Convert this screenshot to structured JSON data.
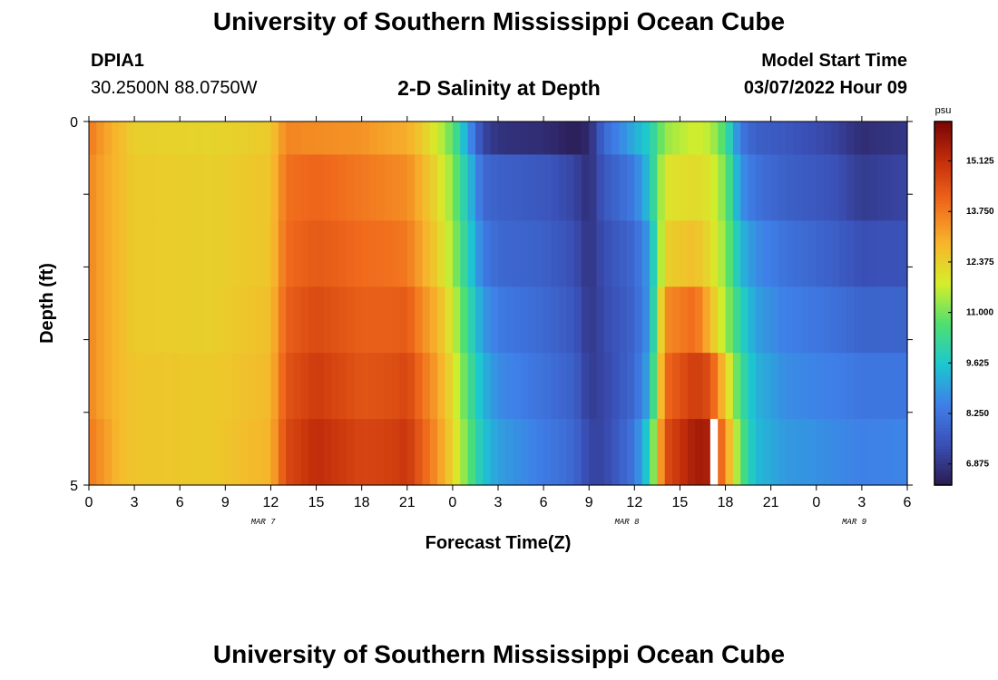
{
  "header": {
    "title": "University of Southern Mississippi Ocean Cube",
    "station": "DPIA1",
    "coords": "30.2500N  88.0750W",
    "plot_title": "2-D Salinity at Depth",
    "start_label": "Model Start Time",
    "start_time": "03/07/2022 Hour 09",
    "footer_title": "University of Southern Mississippi Ocean Cube"
  },
  "chart_data": {
    "type": "heatmap",
    "title": "2-D Salinity at Depth",
    "xlabel": "Forecast Time(Z)",
    "ylabel": "Depth (ft)",
    "x_tick_labels": [
      "0",
      "3",
      "6",
      "9",
      "12",
      "15",
      "18",
      "21",
      "0",
      "3",
      "6",
      "9",
      "12",
      "15",
      "18",
      "21",
      "0",
      "3",
      "6"
    ],
    "date_labels": [
      {
        "label": "MAR 7",
        "at_hour": 11.5
      },
      {
        "label": "MAR 8",
        "at_hour": 35.5
      },
      {
        "label": "MAR 9",
        "at_hour": 50.5
      }
    ],
    "xlim": [
      0,
      54
    ],
    "ylim": [
      0,
      5
    ],
    "y_tick_labels": [
      "0",
      "5"
    ],
    "depth_levels": [
      0,
      1,
      2,
      3,
      4,
      5
    ],
    "colorbar": {
      "unit": "psu",
      "range": [
        6.3,
        16.2
      ],
      "ticks": [
        15.125,
        13.75,
        12.375,
        11.0,
        9.625,
        8.25,
        6.875
      ],
      "tick_labels": [
        "15.125",
        "13.750",
        "12.375",
        "11.000",
        "9.625",
        "8.250",
        "6.875"
      ],
      "colors": [
        "#2b1a4f",
        "#3a4fb5",
        "#3f7fe8",
        "#1cc7d0",
        "#4ee070",
        "#d6ee2a",
        "#f7b52c",
        "#f06a1c",
        "#c6300b",
        "#7a0505"
      ]
    },
    "keyframes": [
      {
        "hour": 0,
        "values": [
          13.8,
          13.6,
          13.6,
          13.6,
          13.6,
          13.8
        ]
      },
      {
        "hour": 1,
        "values": [
          13.2,
          13.1,
          13.1,
          13.1,
          13.1,
          13.3
        ]
      },
      {
        "hour": 2,
        "values": [
          12.8,
          12.8,
          12.8,
          12.8,
          12.8,
          12.8
        ]
      },
      {
        "hour": 3,
        "values": [
          12.4,
          12.5,
          12.5,
          12.5,
          12.6,
          12.6
        ]
      },
      {
        "hour": 8,
        "values": [
          12.3,
          12.4,
          12.4,
          12.4,
          12.5,
          12.5
        ]
      },
      {
        "hour": 12,
        "values": [
          12.5,
          12.6,
          12.6,
          12.7,
          12.8,
          12.9
        ]
      },
      {
        "hour": 13,
        "values": [
          13.6,
          13.9,
          14.0,
          14.2,
          14.4,
          14.6
        ]
      },
      {
        "hour": 15,
        "values": [
          13.5,
          14.1,
          14.3,
          14.6,
          14.9,
          15.2
        ]
      },
      {
        "hour": 18,
        "values": [
          13.4,
          13.8,
          14.0,
          14.2,
          14.4,
          14.7
        ]
      },
      {
        "hour": 20,
        "values": [
          13.1,
          13.6,
          13.9,
          14.2,
          14.5,
          14.8
        ]
      },
      {
        "hour": 21,
        "values": [
          13.0,
          13.5,
          13.8,
          14.3,
          14.7,
          15.0
        ]
      },
      {
        "hour": 22,
        "values": [
          12.5,
          12.9,
          13.1,
          13.5,
          13.9,
          14.2
        ]
      },
      {
        "hour": 23,
        "values": [
          11.8,
          12.2,
          12.4,
          12.9,
          13.2,
          13.4
        ]
      },
      {
        "hour": 24,
        "values": [
          10.8,
          11.2,
          11.4,
          11.8,
          12.1,
          12.3
        ]
      },
      {
        "hour": 25,
        "values": [
          9.0,
          9.6,
          9.9,
          10.3,
          10.6,
          10.9
        ]
      },
      {
        "hour": 26,
        "values": [
          7.2,
          8.0,
          8.4,
          8.9,
          9.3,
          9.6
        ]
      },
      {
        "hour": 27,
        "values": [
          6.8,
          7.8,
          8.0,
          8.4,
          8.7,
          9.0
        ]
      },
      {
        "hour": 30,
        "values": [
          6.7,
          7.6,
          7.8,
          8.0,
          8.2,
          8.4
        ]
      },
      {
        "hour": 32,
        "values": [
          6.4,
          7.2,
          7.4,
          7.6,
          7.8,
          8.0
        ]
      },
      {
        "hour": 33,
        "values": [
          6.6,
          6.7,
          6.8,
          6.9,
          7.0,
          7.2
        ]
      },
      {
        "hour": 34,
        "values": [
          8.0,
          7.6,
          7.4,
          7.3,
          7.2,
          7.2
        ]
      },
      {
        "hour": 36,
        "values": [
          9.2,
          8.4,
          8.0,
          7.9,
          8.0,
          8.3
        ]
      },
      {
        "hour": 37,
        "values": [
          9.8,
          9.6,
          9.0,
          8.9,
          9.2,
          10.0
        ]
      },
      {
        "hour": 38,
        "values": [
          11.3,
          12.0,
          12.4,
          13.5,
          14.0,
          14.5
        ]
      },
      {
        "hour": 40,
        "values": [
          11.8,
          12.2,
          12.7,
          14.0,
          14.9,
          15.6
        ]
      },
      {
        "hour": 41,
        "values": [
          11.6,
          12.0,
          12.2,
          12.8,
          14.5,
          15.5
        ]
      },
      {
        "hour": 42,
        "values": [
          10.5,
          11.0,
          11.2,
          11.4,
          12.5,
          13.5
        ]
      },
      {
        "hour": 43,
        "values": [
          8.3,
          8.8,
          9.4,
          10.0,
          10.4,
          10.8
        ]
      },
      {
        "hour": 44,
        "values": [
          7.8,
          8.2,
          8.7,
          9.0,
          9.3,
          9.4
        ]
      },
      {
        "hour": 46,
        "values": [
          7.6,
          7.8,
          8.2,
          8.5,
          8.7,
          8.9
        ]
      },
      {
        "hour": 49,
        "values": [
          7.2,
          7.5,
          7.8,
          8.2,
          8.5,
          8.7
        ]
      },
      {
        "hour": 51,
        "values": [
          6.7,
          7.0,
          7.4,
          7.9,
          8.3,
          8.5
        ]
      },
      {
        "hour": 54,
        "values": [
          6.9,
          7.2,
          7.5,
          7.9,
          8.3,
          8.6
        ]
      }
    ],
    "missing_cell": {
      "hour": 41,
      "depth": 5
    }
  }
}
